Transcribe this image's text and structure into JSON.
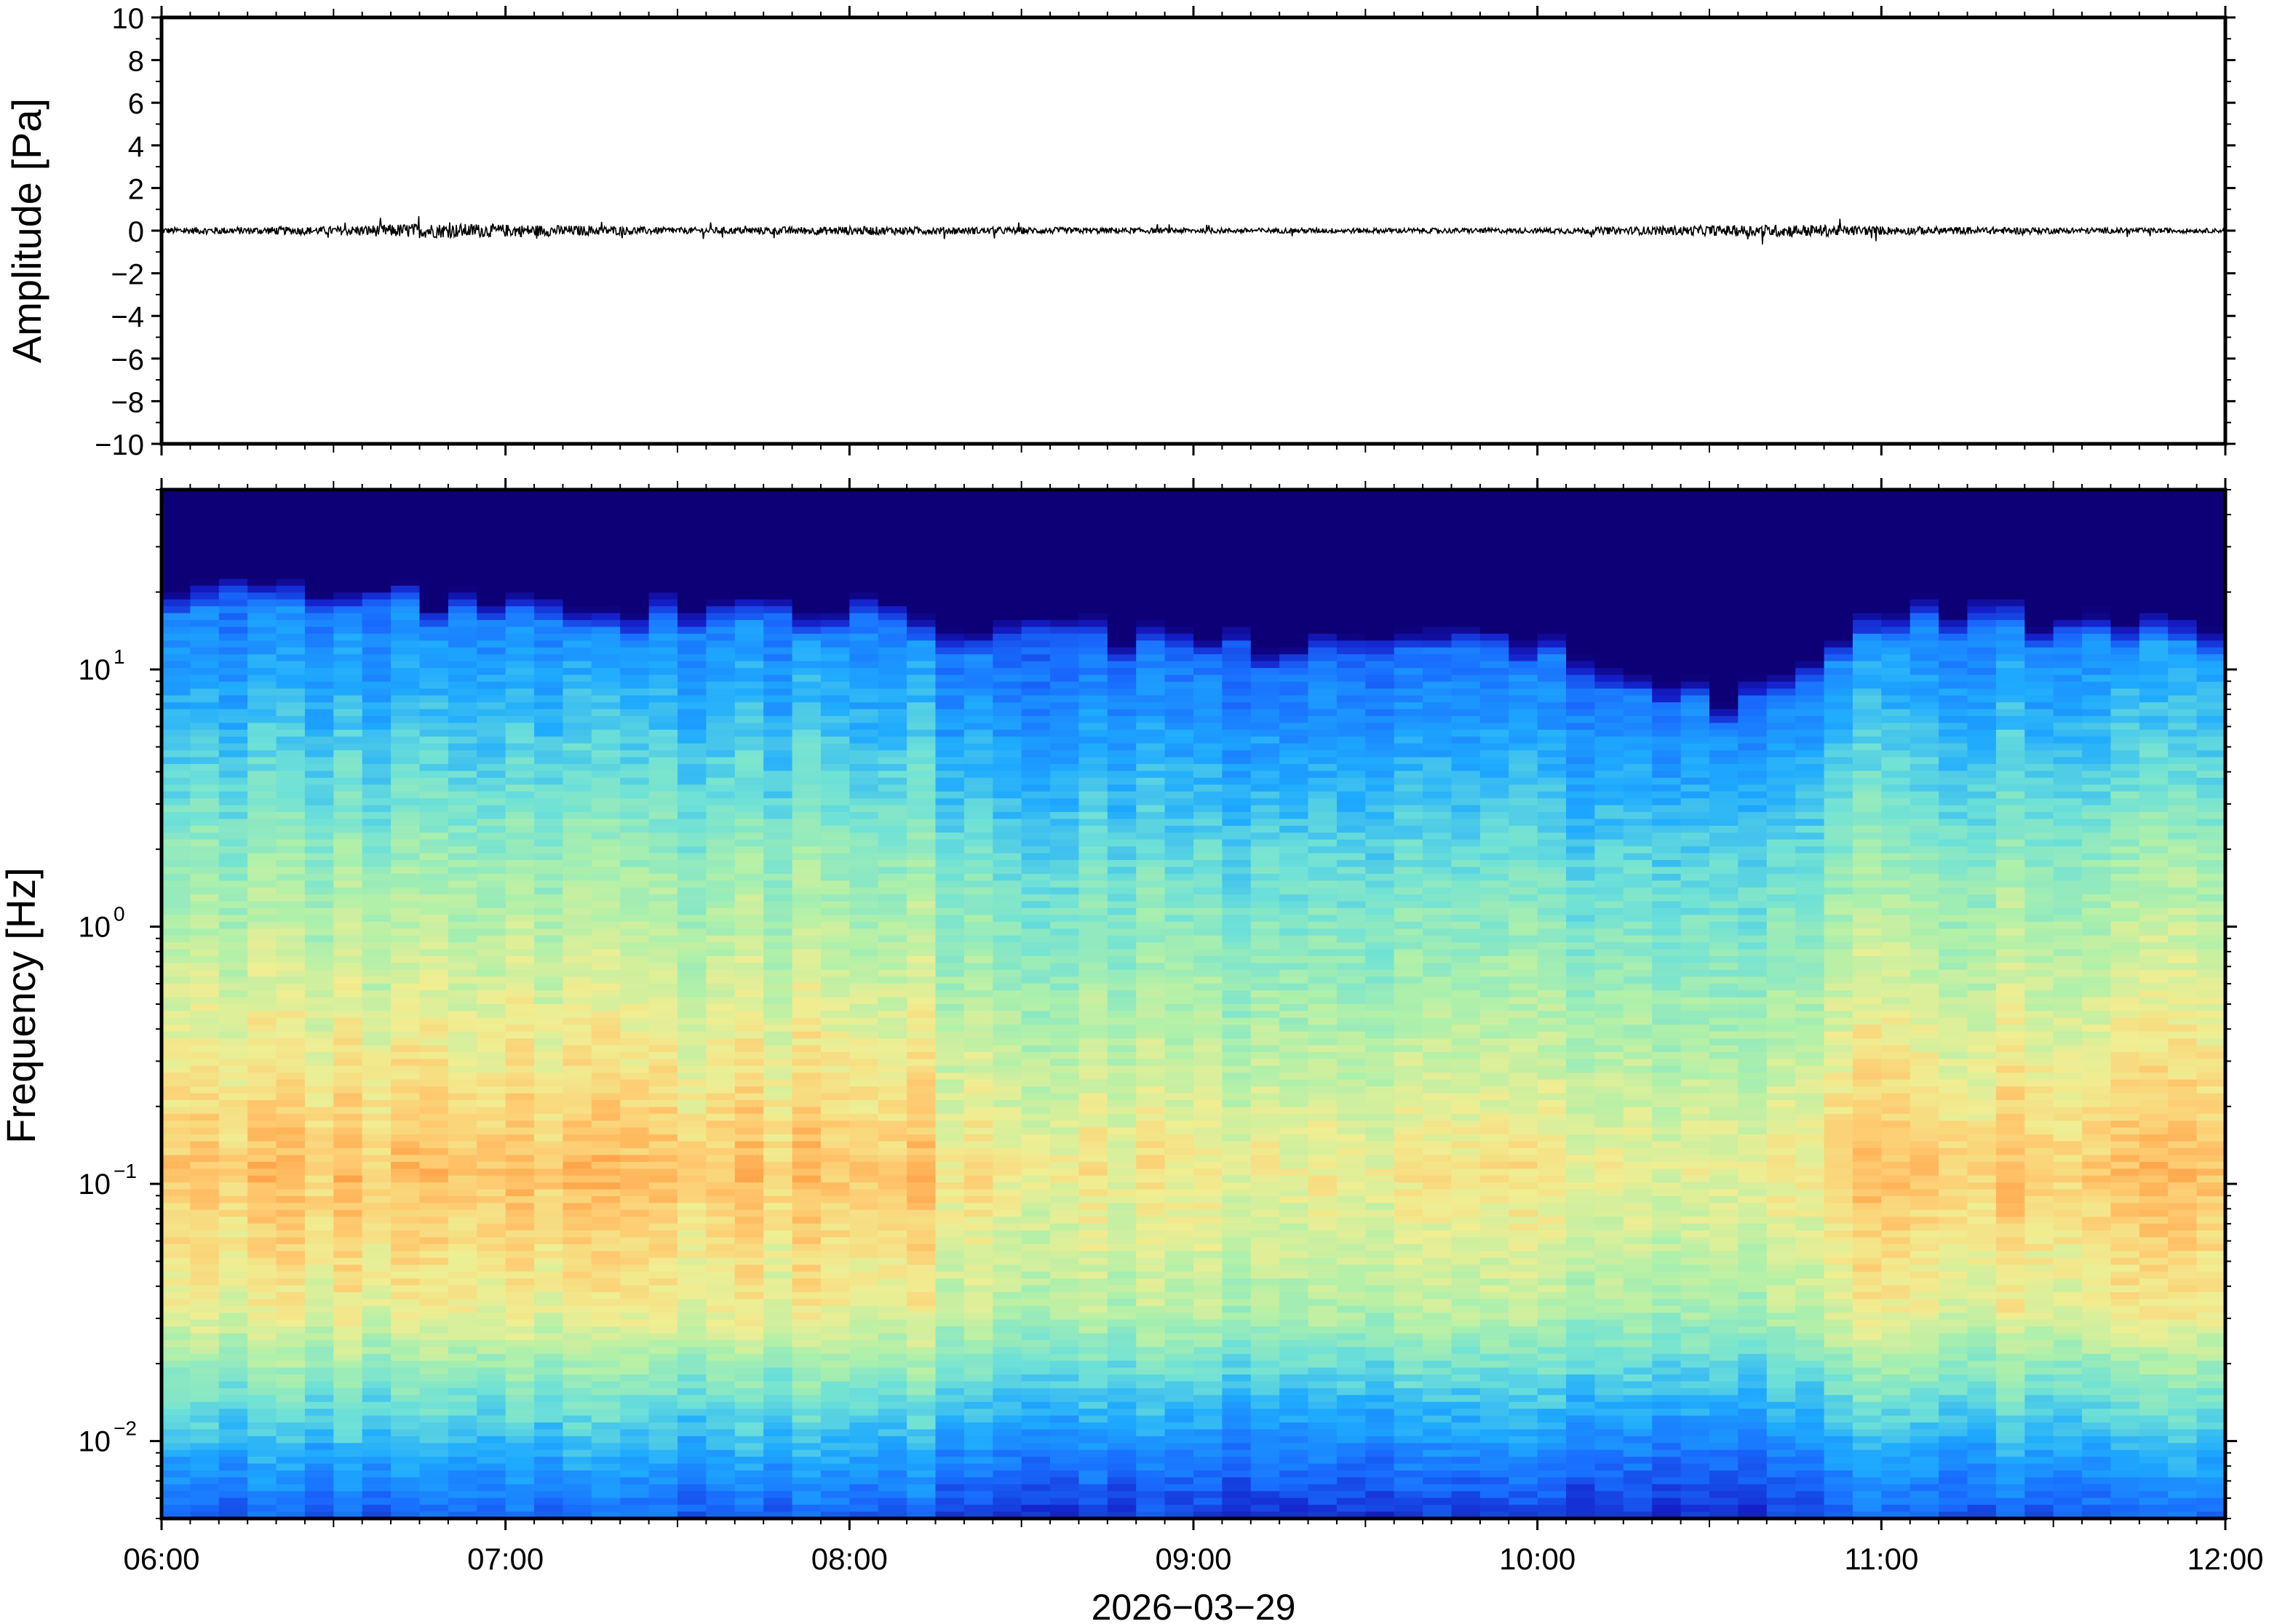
{
  "chart_data": [
    {
      "type": "line",
      "title": "",
      "xlabel": "",
      "ylabel": "Amplitude [Pa]",
      "xlim": [
        "06:00",
        "12:00"
      ],
      "ylim": [
        -10,
        10
      ],
      "y_ticks": [
        10,
        8,
        6,
        4,
        2,
        0,
        -2,
        -4,
        -6,
        -8,
        -10
      ],
      "y_tick_labels": [
        "10",
        "8",
        "6",
        "4",
        "2",
        "0",
        "−2",
        "−4",
        "−6",
        "−8",
        "−10"
      ],
      "grid": false,
      "series": [
        {
          "x": [
            "06:00",
            "06:30",
            "06:45",
            "07:00",
            "07:30",
            "08:00",
            "09:00",
            "10:00",
            "10:45",
            "11:00",
            "11:30",
            "12:00"
          ],
          "y_envelope": [
            0.15,
            0.2,
            0.35,
            0.3,
            0.15,
            0.2,
            0.12,
            0.12,
            0.3,
            0.2,
            0.15,
            0.1
          ],
          "y_baseline": 0,
          "color": "#000000"
        }
      ]
    },
    {
      "type": "heatmap",
      "title": "",
      "xlabel": "2026−03−29",
      "ylabel": "Frequency [Hz]",
      "xlim": [
        "06:00",
        "12:00"
      ],
      "ylim": [
        0.005,
        50
      ],
      "y_scale": "log",
      "x_tick_labels": [
        "06:00",
        "07:00",
        "08:00",
        "09:00",
        "10:00",
        "11:00",
        "12:00"
      ],
      "y_ticks": [
        {
          "base": "10",
          "exp": "1"
        },
        {
          "base": "10",
          "exp": "0"
        },
        {
          "base": "10",
          "exp": "−1"
        },
        {
          "base": "10",
          "exp": "−2"
        }
      ],
      "colormap": "jet-like",
      "colors": {
        "low": "#0d0077",
        "mid_low": "#1a9fff",
        "mid": "#6ee7c5",
        "mid_high": "#f0ee92",
        "high": "#ff9a3c"
      },
      "description_values": {
        "time_columns": 72,
        "upper_cutoff_hz_by_hour": {
          "06:00": 18,
          "07:00": 15,
          "08:00": 14,
          "09:00": 11,
          "10:00": 11,
          "10:35": 6,
          "11:00": 14,
          "12:00": 12
        },
        "peak_band_hz": [
          0.05,
          0.2
        ]
      }
    }
  ]
}
